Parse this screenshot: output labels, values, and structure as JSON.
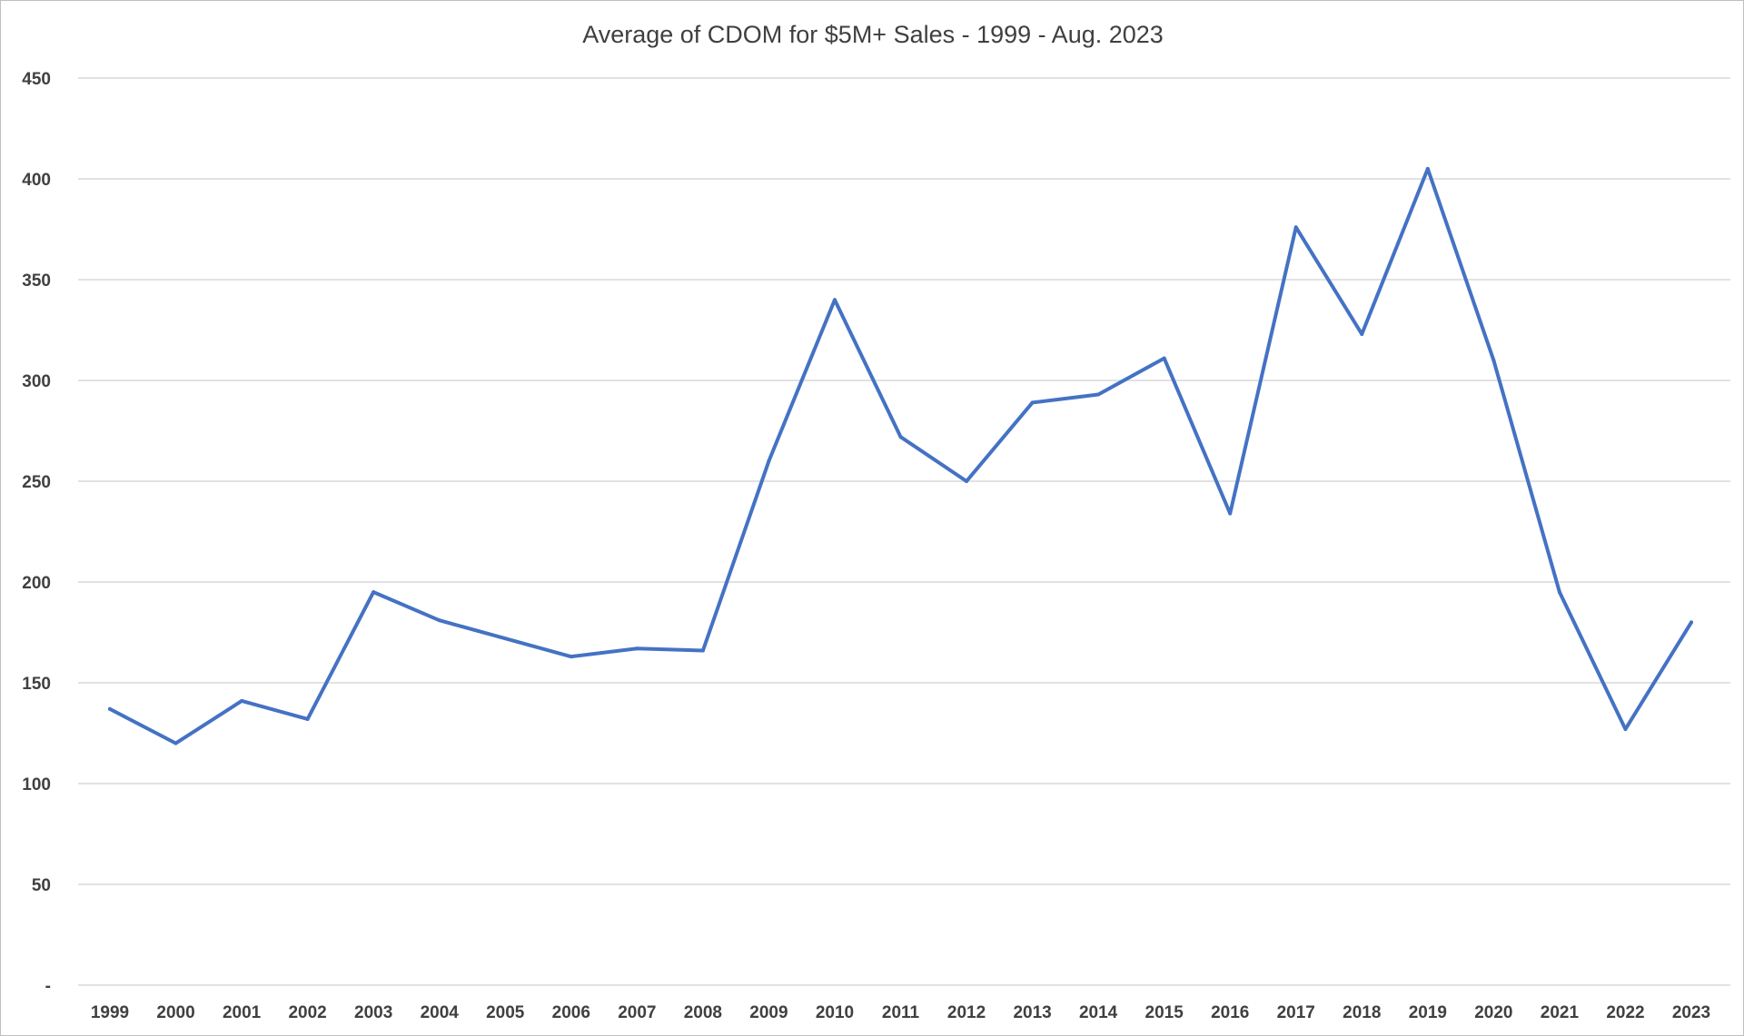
{
  "chart_data": {
    "type": "line",
    "title": "Average of CDOM  for $5M+ Sales - 1999 - Aug. 2023",
    "xlabel": "",
    "ylabel": "",
    "ylim": [
      0,
      450
    ],
    "y_ticks": [
      {
        "value": 450,
        "label": "450"
      },
      {
        "value": 400,
        "label": "400"
      },
      {
        "value": 350,
        "label": "350"
      },
      {
        "value": 300,
        "label": "300"
      },
      {
        "value": 250,
        "label": "250"
      },
      {
        "value": 200,
        "label": "200"
      },
      {
        "value": 150,
        "label": "150"
      },
      {
        "value": 100,
        "label": "100"
      },
      {
        "value": 50,
        "label": "50"
      },
      {
        "value": 0,
        "label": "-"
      }
    ],
    "grid": true,
    "legend": "none",
    "categories": [
      "1999",
      "2000",
      "2001",
      "2002",
      "2003",
      "2004",
      "2005",
      "2006",
      "2007",
      "2008",
      "2009",
      "2010",
      "2011",
      "2012",
      "2013",
      "2014",
      "2015",
      "2016",
      "2017",
      "2018",
      "2019",
      "2020",
      "2021",
      "2022",
      "2023"
    ],
    "series": [
      {
        "name": "Average of CDOM",
        "color": "#4472c4",
        "values": [
          137,
          120,
          141,
          132,
          195,
          181,
          172,
          163,
          167,
          166,
          260,
          340,
          272,
          250,
          289,
          293,
          311,
          234,
          376,
          323,
          405,
          310,
          195,
          127,
          180
        ]
      }
    ]
  }
}
